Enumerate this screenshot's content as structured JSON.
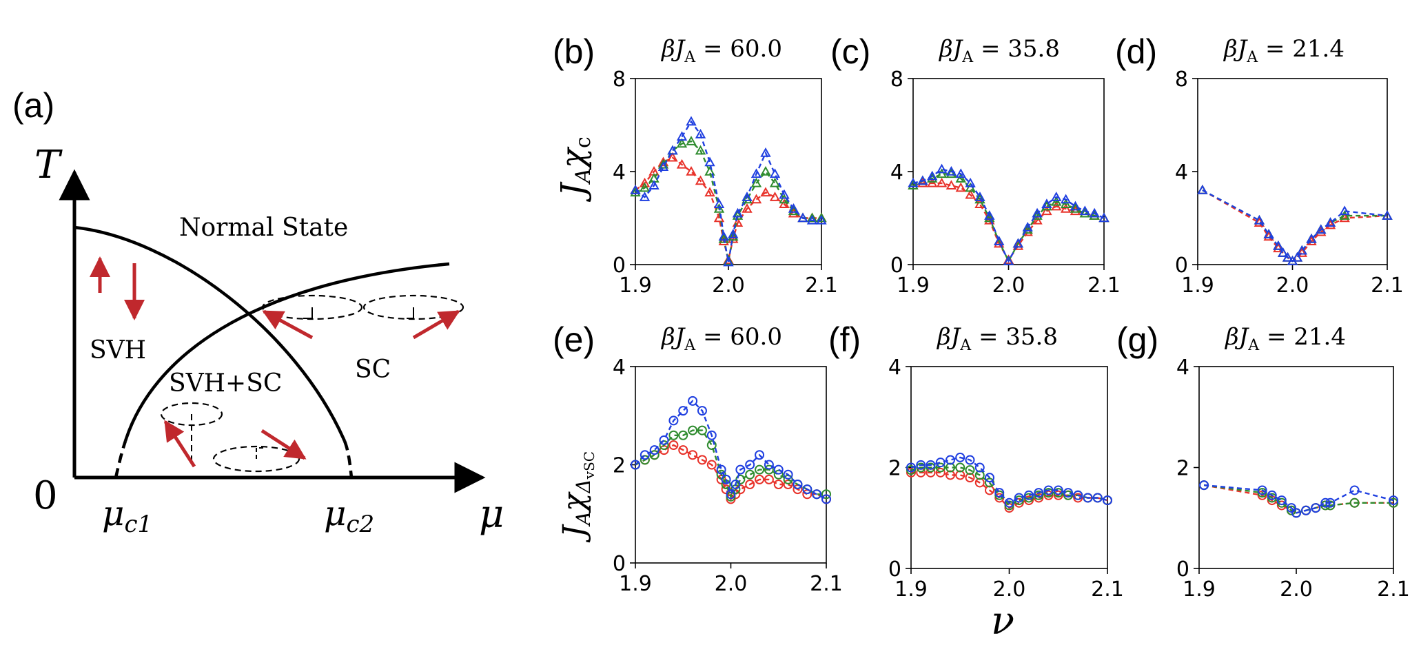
{
  "phase_diagram": {
    "panel_label": "(a)",
    "t_axis_label": "T",
    "mu_axis_label": "μ",
    "origin_label": "0",
    "mu_c1_label": "μc1",
    "mu_c2_label": "μc2",
    "normal_state": "Normal State",
    "svh": "SVH",
    "svh_sc": "SVH+SC",
    "sc": "SC",
    "arrow_color": "#c0282d"
  },
  "colors": {
    "blue": "#1f3fe0",
    "green": "#2e8b2e",
    "red": "#e8322a"
  },
  "row_ylabels": [
    "JAχc",
    "JAχΔvSC"
  ],
  "xlabel": "ν",
  "chart_data": [
    {
      "panel": "(b)",
      "title": "βJA = 60.0",
      "type": "line",
      "marker": "triangle",
      "xlim": [
        1.9,
        2.1
      ],
      "ylim": [
        0,
        8
      ],
      "xticks": [
        "1.9",
        "2.0",
        "2.1"
      ],
      "yticks": [
        "0",
        "4",
        "8"
      ],
      "series": [
        {
          "color": "blue",
          "x": [
            1.9,
            1.91,
            1.92,
            1.93,
            1.94,
            1.95,
            1.96,
            1.97,
            1.98,
            1.99,
            1.995,
            2.0,
            2.005,
            2.01,
            2.02,
            2.03,
            2.04,
            2.05,
            2.06,
            2.07,
            2.08,
            2.09,
            2.1
          ],
          "y": [
            3.2,
            2.9,
            3.4,
            4.2,
            4.9,
            5.5,
            6.15,
            5.6,
            4.4,
            2.6,
            1.2,
            0.1,
            1.3,
            2.2,
            2.9,
            3.9,
            4.8,
            3.9,
            3.0,
            2.4,
            2.0,
            1.9,
            1.9
          ]
        },
        {
          "color": "green",
          "x": [
            1.9,
            1.91,
            1.92,
            1.93,
            1.94,
            1.95,
            1.96,
            1.97,
            1.98,
            1.99,
            1.995,
            2.0,
            2.005,
            2.01,
            2.02,
            2.03,
            2.04,
            2.05,
            2.06,
            2.07,
            2.08,
            2.09,
            2.1
          ],
          "y": [
            3.1,
            3.3,
            3.7,
            4.3,
            4.9,
            5.2,
            5.3,
            4.9,
            4.0,
            2.4,
            1.1,
            0.15,
            1.2,
            2.1,
            2.8,
            3.5,
            4.0,
            3.5,
            2.8,
            2.3,
            2.0,
            2.0,
            2.0
          ]
        },
        {
          "color": "red",
          "x": [
            1.9,
            1.91,
            1.92,
            1.93,
            1.94,
            1.95,
            1.96,
            1.97,
            1.98,
            1.99,
            1.995,
            2.0,
            2.005,
            2.01,
            2.02,
            2.03,
            2.04,
            2.05,
            2.06,
            2.07,
            2.08,
            2.09,
            2.1
          ],
          "y": [
            3.2,
            3.5,
            4.0,
            4.4,
            4.6,
            4.3,
            4.0,
            3.6,
            3.1,
            2.0,
            1.0,
            0.2,
            1.1,
            1.8,
            2.4,
            2.8,
            3.1,
            2.9,
            2.6,
            2.2,
            2.0,
            2.0,
            2.0
          ]
        }
      ]
    },
    {
      "panel": "(c)",
      "title": "βJA = 35.8",
      "type": "line",
      "marker": "triangle",
      "xlim": [
        1.9,
        2.1
      ],
      "ylim": [
        0,
        8
      ],
      "xticks": [
        "1.9",
        "2.0",
        "2.1"
      ],
      "yticks": [
        "0",
        "4",
        "8"
      ],
      "series": [
        {
          "color": "blue",
          "x": [
            1.9,
            1.91,
            1.92,
            1.93,
            1.94,
            1.95,
            1.96,
            1.97,
            1.98,
            1.99,
            2.0,
            2.01,
            2.02,
            2.03,
            2.04,
            2.05,
            2.06,
            2.07,
            2.08,
            2.09,
            2.1
          ],
          "y": [
            3.5,
            3.6,
            3.8,
            4.1,
            4.0,
            3.9,
            3.5,
            2.9,
            2.1,
            1.0,
            0.15,
            0.9,
            1.6,
            2.2,
            2.6,
            2.9,
            2.8,
            2.5,
            2.3,
            2.2,
            2.0
          ]
        },
        {
          "color": "green",
          "x": [
            1.9,
            1.91,
            1.92,
            1.93,
            1.94,
            1.95,
            1.96,
            1.97,
            1.98,
            1.99,
            2.0,
            2.01,
            2.02,
            2.03,
            2.04,
            2.05,
            2.06,
            2.07,
            2.08,
            2.09,
            2.1
          ],
          "y": [
            3.4,
            3.6,
            3.7,
            3.9,
            3.9,
            3.7,
            3.3,
            2.8,
            2.0,
            1.0,
            0.15,
            0.9,
            1.5,
            2.1,
            2.5,
            2.7,
            2.6,
            2.4,
            2.2,
            2.1,
            2.0
          ]
        },
        {
          "color": "red",
          "x": [
            1.9,
            1.91,
            1.92,
            1.93,
            1.94,
            1.95,
            1.96,
            1.97,
            1.98,
            1.99,
            2.0,
            2.01,
            2.02,
            2.03,
            2.04,
            2.05,
            2.06,
            2.07,
            2.08,
            2.09,
            2.1
          ],
          "y": [
            3.4,
            3.5,
            3.5,
            3.5,
            3.4,
            3.3,
            3.0,
            2.6,
            1.9,
            0.9,
            0.2,
            0.8,
            1.4,
            1.9,
            2.3,
            2.5,
            2.4,
            2.3,
            2.2,
            2.1,
            2.0
          ]
        }
      ]
    },
    {
      "panel": "(d)",
      "title": "βJA = 21.4",
      "type": "line",
      "marker": "triangle",
      "xlim": [
        1.9,
        2.1
      ],
      "ylim": [
        0,
        8
      ],
      "xticks": [
        "1.9",
        "2.0",
        "2.1"
      ],
      "yticks": [
        "0",
        "4",
        "8"
      ],
      "series": [
        {
          "color": "blue",
          "x": [
            1.905,
            1.965,
            1.975,
            1.985,
            1.99,
            1.995,
            2.0,
            2.005,
            2.01,
            2.02,
            2.03,
            2.04,
            2.055,
            2.1
          ],
          "y": [
            3.2,
            1.9,
            1.3,
            0.8,
            0.5,
            0.3,
            0.15,
            0.3,
            0.6,
            1.1,
            1.5,
            1.8,
            2.3,
            2.1
          ]
        },
        {
          "color": "green",
          "x": [
            1.905,
            1.965,
            1.975,
            1.985,
            1.99,
            1.995,
            2.0,
            2.005,
            2.01,
            2.02,
            2.03,
            2.04,
            2.055,
            2.1
          ],
          "y": [
            3.2,
            1.9,
            1.3,
            0.8,
            0.5,
            0.3,
            0.15,
            0.3,
            0.6,
            1.1,
            1.5,
            1.8,
            2.1,
            2.1
          ]
        },
        {
          "color": "red",
          "x": [
            1.905,
            1.965,
            1.975,
            1.985,
            1.99,
            1.995,
            2.0,
            2.005,
            2.01,
            2.02,
            2.03,
            2.04,
            2.055,
            2.1
          ],
          "y": [
            3.2,
            1.8,
            1.2,
            0.7,
            0.5,
            0.3,
            0.15,
            0.3,
            0.5,
            1.0,
            1.4,
            1.7,
            2.0,
            2.1
          ]
        }
      ]
    },
    {
      "panel": "(e)",
      "title": "βJA = 60.0",
      "type": "line",
      "marker": "circle",
      "xlim": [
        1.9,
        2.1
      ],
      "ylim": [
        0,
        4
      ],
      "xticks": [
        "1.9",
        "2.0",
        "2.1"
      ],
      "yticks": [
        "0",
        "2",
        "4"
      ],
      "series": [
        {
          "color": "blue",
          "x": [
            1.9,
            1.91,
            1.92,
            1.93,
            1.94,
            1.95,
            1.96,
            1.97,
            1.98,
            1.99,
            1.995,
            2.0,
            2.005,
            2.01,
            2.02,
            2.03,
            2.04,
            2.05,
            2.06,
            2.07,
            2.08,
            2.09,
            2.1
          ],
          "y": [
            2.0,
            2.2,
            2.3,
            2.5,
            2.9,
            3.1,
            3.3,
            3.1,
            2.6,
            1.9,
            1.7,
            1.4,
            1.6,
            1.9,
            2.0,
            2.2,
            2.0,
            1.9,
            1.8,
            1.6,
            1.5,
            1.4,
            1.3
          ]
        },
        {
          "color": "green",
          "x": [
            1.9,
            1.91,
            1.92,
            1.93,
            1.94,
            1.95,
            1.96,
            1.97,
            1.98,
            1.99,
            1.995,
            2.0,
            2.005,
            2.01,
            2.02,
            2.03,
            2.04,
            2.05,
            2.06,
            2.07,
            2.08,
            2.09,
            2.1
          ],
          "y": [
            2.0,
            2.1,
            2.2,
            2.4,
            2.6,
            2.6,
            2.7,
            2.7,
            2.4,
            1.8,
            1.6,
            1.35,
            1.5,
            1.7,
            1.8,
            1.9,
            1.9,
            1.8,
            1.7,
            1.6,
            1.5,
            1.4,
            1.4
          ]
        },
        {
          "color": "red",
          "x": [
            1.9,
            1.91,
            1.92,
            1.93,
            1.94,
            1.95,
            1.96,
            1.97,
            1.98,
            1.99,
            1.995,
            2.0,
            2.005,
            2.01,
            2.02,
            2.03,
            2.04,
            2.05,
            2.06,
            2.07,
            2.08,
            2.09,
            2.1
          ],
          "y": [
            2.0,
            2.1,
            2.2,
            2.3,
            2.4,
            2.3,
            2.2,
            2.1,
            2.0,
            1.7,
            1.5,
            1.3,
            1.4,
            1.5,
            1.6,
            1.7,
            1.7,
            1.6,
            1.6,
            1.5,
            1.4,
            1.4,
            1.3
          ]
        }
      ]
    },
    {
      "panel": "(f)",
      "title": "βJA = 35.8",
      "type": "line",
      "marker": "circle",
      "xlim": [
        1.9,
        2.1
      ],
      "ylim": [
        0,
        4
      ],
      "xticks": [
        "1.9",
        "2.0",
        "2.1"
      ],
      "yticks": [
        "0",
        "2",
        "4"
      ],
      "series": [
        {
          "color": "blue",
          "x": [
            1.9,
            1.91,
            1.92,
            1.93,
            1.94,
            1.95,
            1.96,
            1.97,
            1.98,
            1.99,
            2.0,
            2.01,
            2.02,
            2.03,
            2.04,
            2.05,
            2.06,
            2.07,
            2.08,
            2.09,
            2.1
          ],
          "y": [
            2.0,
            2.05,
            2.05,
            2.1,
            2.15,
            2.2,
            2.15,
            2.0,
            1.8,
            1.5,
            1.3,
            1.4,
            1.45,
            1.5,
            1.55,
            1.55,
            1.5,
            1.45,
            1.4,
            1.4,
            1.35
          ]
        },
        {
          "color": "green",
          "x": [
            1.9,
            1.91,
            1.92,
            1.93,
            1.94,
            1.95,
            1.96,
            1.97,
            1.98,
            1.99,
            2.0,
            2.01,
            2.02,
            2.03,
            2.04,
            2.05,
            2.06,
            2.07,
            2.08,
            2.09,
            2.1
          ],
          "y": [
            1.95,
            2.0,
            2.0,
            2.0,
            2.0,
            2.0,
            1.95,
            1.85,
            1.7,
            1.45,
            1.25,
            1.35,
            1.4,
            1.45,
            1.5,
            1.5,
            1.45,
            1.45,
            1.4,
            1.4,
            1.35
          ]
        },
        {
          "color": "red",
          "x": [
            1.9,
            1.91,
            1.92,
            1.93,
            1.94,
            1.95,
            1.96,
            1.97,
            1.98,
            1.99,
            2.0,
            2.01,
            2.02,
            2.03,
            2.04,
            2.05,
            2.06,
            2.07,
            2.08,
            2.09,
            2.1
          ],
          "y": [
            1.9,
            1.9,
            1.9,
            1.9,
            1.85,
            1.85,
            1.8,
            1.7,
            1.55,
            1.4,
            1.2,
            1.3,
            1.35,
            1.4,
            1.45,
            1.45,
            1.45,
            1.4,
            1.4,
            1.4,
            1.35
          ]
        }
      ]
    },
    {
      "panel": "(g)",
      "title": "βJA = 21.4",
      "type": "line",
      "marker": "circle",
      "xlim": [
        1.9,
        2.1
      ],
      "ylim": [
        0,
        4
      ],
      "xticks": [
        "1.9",
        "2.0",
        "2.1"
      ],
      "yticks": [
        "0",
        "2",
        "4"
      ],
      "series": [
        {
          "color": "blue",
          "x": [
            1.905,
            1.965,
            1.975,
            1.985,
            1.995,
            2.0,
            2.01,
            2.02,
            2.03,
            2.035,
            2.06,
            2.1
          ],
          "y": [
            1.65,
            1.55,
            1.45,
            1.35,
            1.2,
            1.1,
            1.15,
            1.2,
            1.3,
            1.3,
            1.55,
            1.35
          ]
        },
        {
          "color": "green",
          "x": [
            1.905,
            1.965,
            1.975,
            1.985,
            1.995,
            2.0,
            2.01,
            2.02,
            2.03,
            2.035,
            2.06,
            2.1
          ],
          "y": [
            1.65,
            1.5,
            1.4,
            1.3,
            1.15,
            1.1,
            1.15,
            1.2,
            1.25,
            1.25,
            1.3,
            1.3
          ]
        },
        {
          "color": "red",
          "x": [
            1.905,
            1.965,
            1.975,
            1.985,
            1.995,
            2.0,
            2.01,
            2.02,
            2.03,
            2.035,
            2.06,
            2.1
          ],
          "y": [
            1.65,
            1.45,
            1.35,
            1.25,
            1.15,
            1.1,
            1.15,
            1.2,
            1.25,
            1.25,
            1.3,
            1.3
          ]
        }
      ]
    }
  ]
}
